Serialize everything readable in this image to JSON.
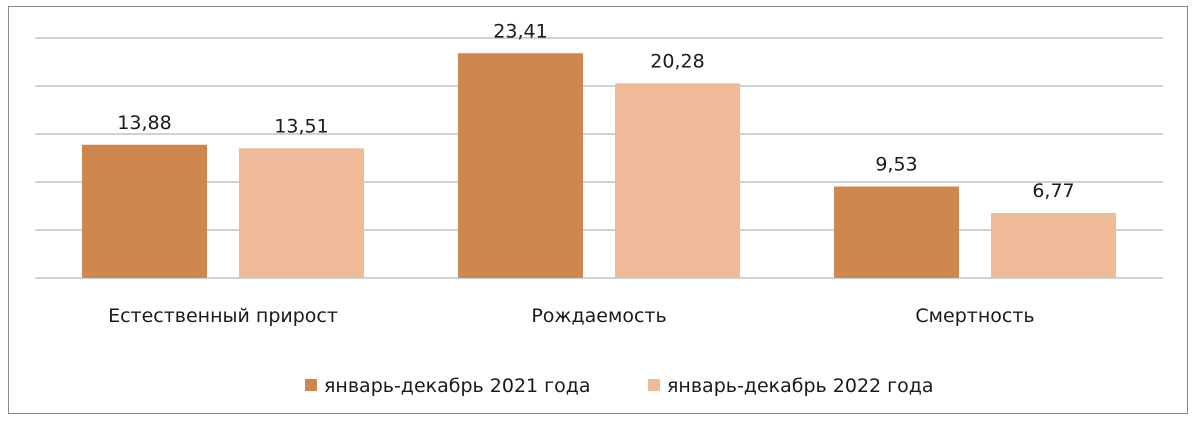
{
  "chart_data": {
    "type": "bar",
    "categories": [
      "Естественный прирост",
      "Рождаемость",
      "Смертность"
    ],
    "series": [
      {
        "name": "январь-декабрь 2021 года",
        "values": [
          13.88,
          23.41,
          9.53
        ],
        "labels": [
          "13,88",
          "23,41",
          "9,53"
        ],
        "color": "#CE874C"
      },
      {
        "name": "январь-декабрь 2022 года",
        "values": [
          13.51,
          20.28,
          6.77
        ],
        "labels": [
          "13,51",
          "20,28",
          "6,77"
        ],
        "color": "#EFBA98"
      }
    ],
    "ylim": [
      0,
      25
    ],
    "grid": true,
    "legend_position": "bottom"
  }
}
